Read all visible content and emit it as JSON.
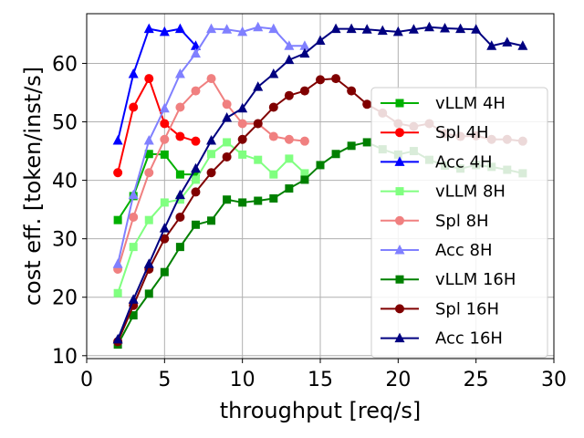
{
  "chart_data": {
    "type": "line",
    "title": "",
    "xlabel": "throughput [req/s]",
    "ylabel": "cost eff. [token/inst/s]",
    "xlim": [
      0,
      30
    ],
    "ylim": [
      9.5,
      68.5
    ],
    "xticks": [
      0,
      5,
      10,
      15,
      20,
      25,
      30
    ],
    "yticks": [
      10,
      20,
      30,
      40,
      50,
      60
    ],
    "grid": true,
    "legend_position": "right",
    "series": [
      {
        "name": "vLLM 4H",
        "color": "#00b000",
        "marker": "square",
        "x": [
          2,
          3,
          4,
          5,
          6,
          7
        ],
        "y": [
          33.2,
          37.3,
          44.5,
          44.4,
          41.0,
          41.0
        ]
      },
      {
        "name": "Spl 4H",
        "color": "#ff0000",
        "marker": "circle",
        "x": [
          2,
          3,
          4,
          5,
          6,
          7
        ],
        "y": [
          41.3,
          52.5,
          57.4,
          49.7,
          47.5,
          46.7
        ]
      },
      {
        "name": "Acc 4H",
        "color": "#0000ff",
        "marker": "triangle",
        "x": [
          2,
          3,
          4,
          5,
          6,
          7
        ],
        "y": [
          46.8,
          58.2,
          65.9,
          65.4,
          65.9,
          63.0
        ]
      },
      {
        "name": "vLLM 8H",
        "color": "#80ff80",
        "marker": "square",
        "x": [
          2,
          3,
          4,
          5,
          6,
          7,
          8,
          9,
          10,
          11,
          12,
          13,
          14
        ],
        "y": [
          20.7,
          28.6,
          33.2,
          36.2,
          36.7,
          40.1,
          44.5,
          46.5,
          44.4,
          43.5,
          41.0,
          43.7,
          41.2
        ]
      },
      {
        "name": "Spl 8H",
        "color": "#f08080",
        "marker": "circle",
        "x": [
          2,
          3,
          4,
          5,
          6,
          7,
          8,
          9,
          10,
          11,
          12,
          13,
          14
        ],
        "y": [
          24.8,
          33.7,
          41.3,
          47.0,
          52.5,
          55.3,
          57.4,
          53.0,
          49.7,
          49.7,
          47.5,
          47.0,
          46.7
        ]
      },
      {
        "name": "Acc 8H",
        "color": "#8080ff",
        "marker": "triangle",
        "x": [
          2,
          3,
          4,
          5,
          6,
          7,
          8,
          9,
          10,
          11,
          12,
          13,
          14
        ],
        "y": [
          25.7,
          37.5,
          46.8,
          52.3,
          58.2,
          61.7,
          65.9,
          65.8,
          65.4,
          66.2,
          65.9,
          63.0,
          63.0
        ]
      },
      {
        "name": "vLLM 16H",
        "color": "#008000",
        "marker": "square",
        "x": [
          2,
          3,
          4,
          5,
          6,
          7,
          8,
          9,
          10,
          11,
          12,
          13,
          14,
          15,
          16,
          17,
          18,
          19,
          20,
          21,
          22,
          23,
          24,
          25,
          26,
          27,
          28
        ],
        "y": [
          11.9,
          16.9,
          20.6,
          24.3,
          28.6,
          32.4,
          33.1,
          36.7,
          36.2,
          36.5,
          36.9,
          38.6,
          40.1,
          42.6,
          44.5,
          45.9,
          46.5,
          45.3,
          44.4,
          45.0,
          43.5,
          42.5,
          42.0,
          42.6,
          42.3,
          41.8,
          41.2
        ]
      },
      {
        "name": "Spl 16H",
        "color": "#800000",
        "marker": "circle",
        "x": [
          2,
          3,
          4,
          5,
          6,
          7,
          8,
          9,
          10,
          11,
          12,
          13,
          14,
          15,
          16,
          17,
          18,
          19,
          20,
          21,
          22,
          23,
          24,
          25,
          26,
          27,
          28
        ],
        "y": [
          12.4,
          18.6,
          24.8,
          30.0,
          33.7,
          38.0,
          41.3,
          44.0,
          47.0,
          49.7,
          52.5,
          54.5,
          55.3,
          57.2,
          57.4,
          55.3,
          53.0,
          51.5,
          49.7,
          49.2,
          49.7,
          48.0,
          47.5,
          47.6,
          47.0,
          47.0,
          46.7
        ]
      },
      {
        "name": "Acc 16H",
        "color": "#000080",
        "marker": "triangle",
        "x": [
          2,
          3,
          4,
          5,
          6,
          7,
          8,
          9,
          10,
          11,
          12,
          13,
          14,
          15,
          16,
          17,
          18,
          19,
          20,
          21,
          22,
          23,
          24,
          25,
          26,
          27,
          28
        ],
        "y": [
          12.8,
          19.6,
          25.7,
          31.8,
          37.5,
          42.0,
          46.8,
          50.7,
          52.3,
          56.0,
          58.2,
          60.6,
          61.7,
          63.9,
          65.9,
          65.9,
          65.8,
          65.6,
          65.4,
          65.8,
          66.2,
          66.0,
          65.9,
          65.8,
          63.0,
          63.6,
          63.0
        ]
      }
    ]
  }
}
